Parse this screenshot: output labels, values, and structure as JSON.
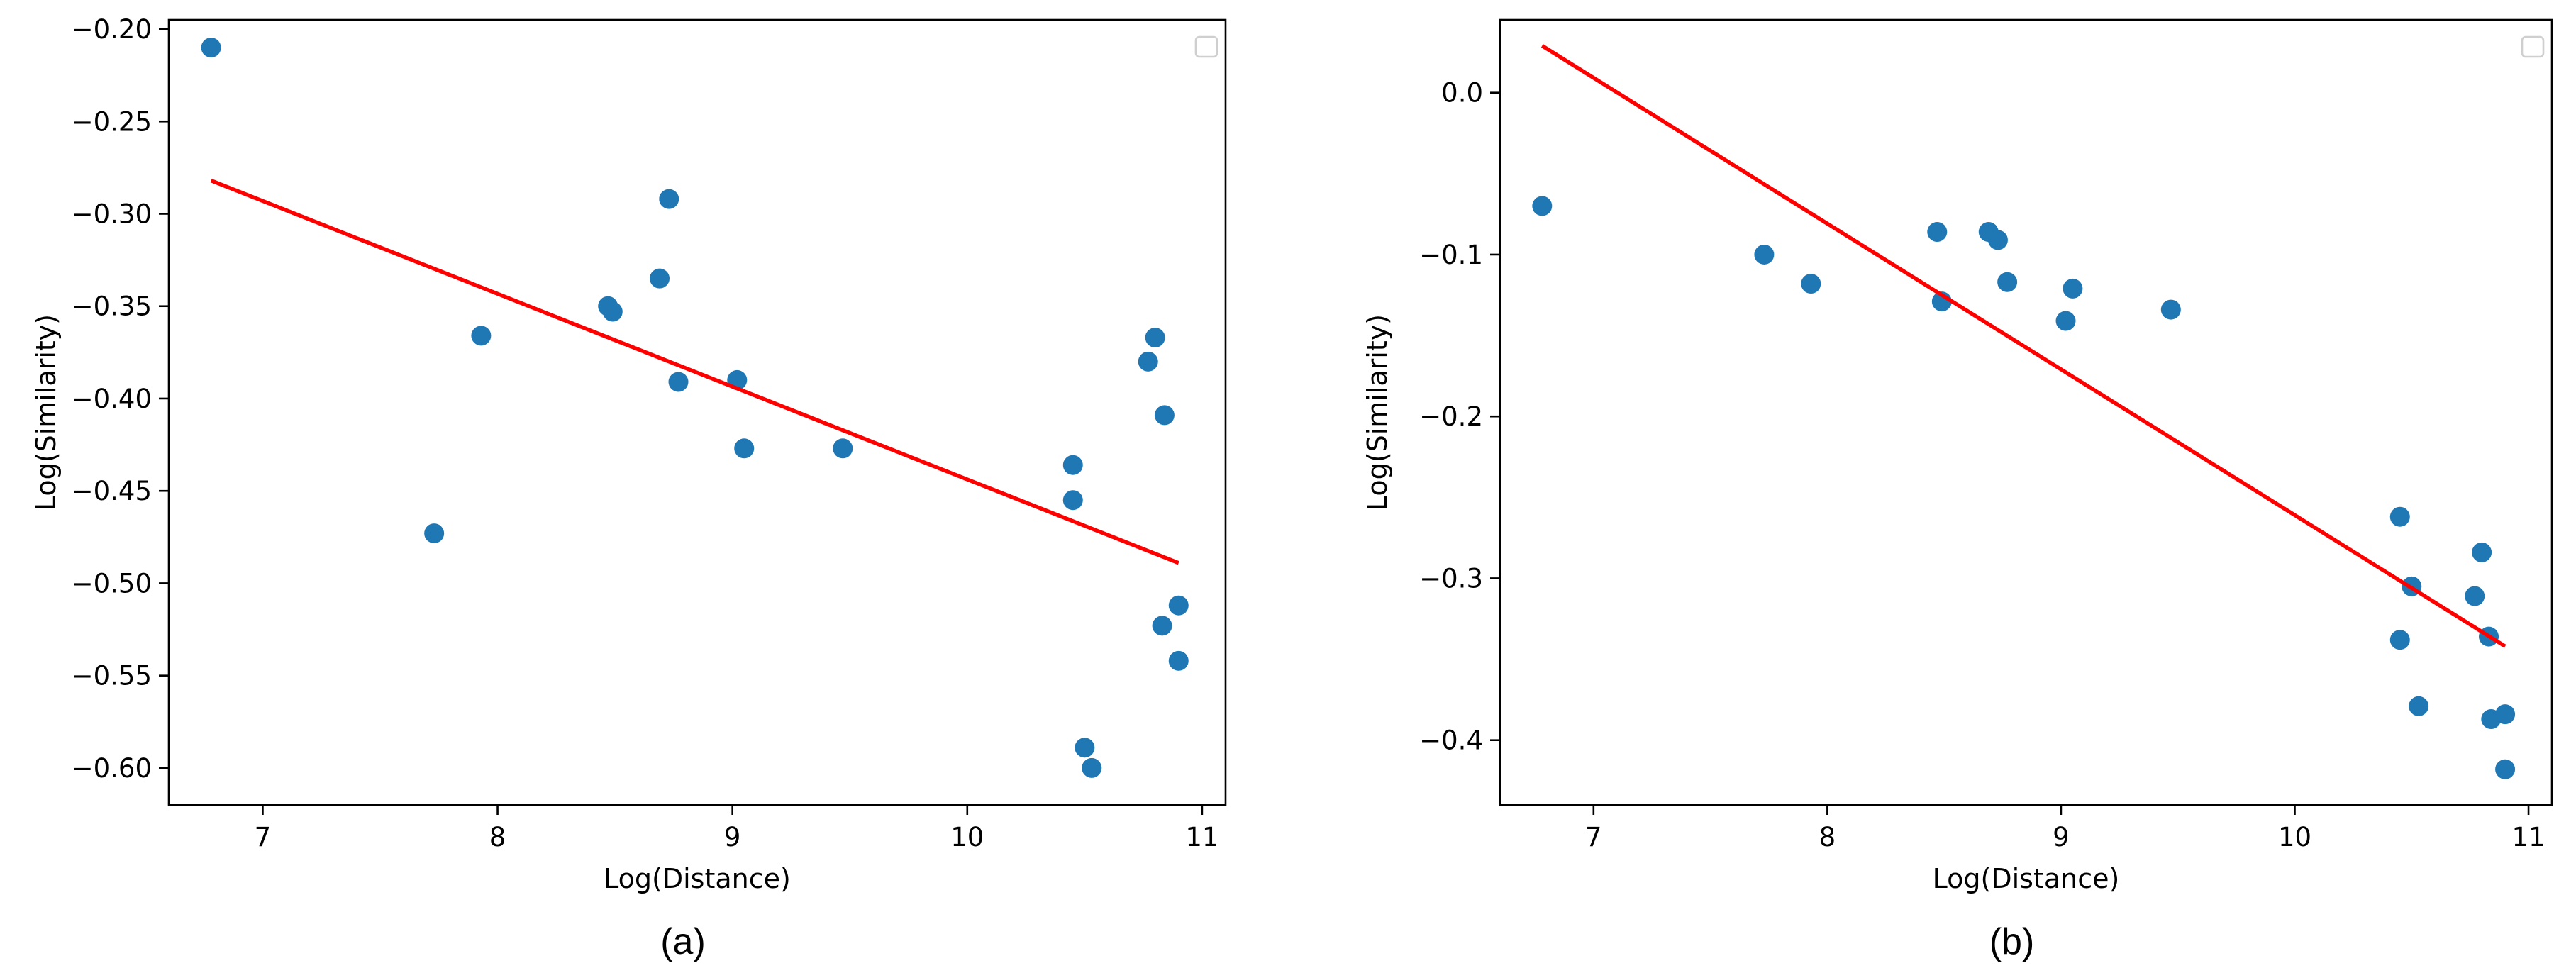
{
  "chart_data": [
    {
      "type": "scatter",
      "caption": "(a)",
      "xlabel": "Log(Distance)",
      "ylabel": "Log(Similarity)",
      "xlim": [
        6.6,
        11.1
      ],
      "ylim": [
        -0.62,
        -0.195
      ],
      "xticks": [
        7,
        8,
        9,
        10,
        11
      ],
      "yticks": [
        -0.6,
        -0.55,
        -0.5,
        -0.45,
        -0.4,
        -0.35,
        -0.3,
        -0.25,
        -0.2
      ],
      "xtick_labels": [
        "7",
        "8",
        "9",
        "10",
        "11"
      ],
      "ytick_labels": [
        "−0.60",
        "−0.55",
        "−0.50",
        "−0.45",
        "−0.40",
        "−0.35",
        "−0.30",
        "−0.25",
        "−0.20"
      ],
      "legend": "top-right (empty)",
      "grid": false,
      "point_color": "#1f77b4",
      "line_color": "#ff0000",
      "points": [
        [
          6.78,
          -0.21
        ],
        [
          7.73,
          -0.473
        ],
        [
          7.93,
          -0.366
        ],
        [
          8.47,
          -0.35
        ],
        [
          8.49,
          -0.353
        ],
        [
          8.69,
          -0.335
        ],
        [
          8.73,
          -0.292
        ],
        [
          8.77,
          -0.391
        ],
        [
          9.02,
          -0.39
        ],
        [
          9.05,
          -0.427
        ],
        [
          9.47,
          -0.427
        ],
        [
          10.45,
          -0.436
        ],
        [
          10.45,
          -0.455
        ],
        [
          10.5,
          -0.589
        ],
        [
          10.53,
          -0.6
        ],
        [
          10.77,
          -0.38
        ],
        [
          10.8,
          -0.367
        ],
        [
          10.83,
          -0.523
        ],
        [
          10.84,
          -0.409
        ],
        [
          10.9,
          -0.512
        ],
        [
          10.9,
          -0.542
        ]
      ],
      "fit_line": [
        [
          6.78,
          -0.282
        ],
        [
          10.9,
          -0.489
        ]
      ]
    },
    {
      "type": "scatter",
      "caption": "(b)",
      "xlabel": "Log(Distance)",
      "ylabel": "Log(Similarity)",
      "xlim": [
        6.6,
        11.1
      ],
      "ylim": [
        -0.44,
        0.045
      ],
      "xticks": [
        7,
        8,
        9,
        10,
        11
      ],
      "yticks": [
        -0.4,
        -0.3,
        -0.2,
        -0.1,
        0.0
      ],
      "xtick_labels": [
        "7",
        "8",
        "9",
        "10",
        "11"
      ],
      "ytick_labels": [
        "−0.4",
        "−0.3",
        "−0.2",
        "−0.1",
        "0.0"
      ],
      "legend": "top-right (empty)",
      "grid": false,
      "point_color": "#1f77b4",
      "line_color": "#ff0000",
      "points": [
        [
          6.78,
          -0.07
        ],
        [
          7.73,
          -0.1
        ],
        [
          7.93,
          -0.118
        ],
        [
          8.47,
          -0.086
        ],
        [
          8.49,
          -0.129
        ],
        [
          8.69,
          -0.086
        ],
        [
          8.73,
          -0.091
        ],
        [
          8.77,
          -0.117
        ],
        [
          9.02,
          -0.141
        ],
        [
          9.05,
          -0.121
        ],
        [
          9.47,
          -0.134
        ],
        [
          10.45,
          -0.262
        ],
        [
          10.45,
          -0.338
        ],
        [
          10.5,
          -0.305
        ],
        [
          10.53,
          -0.379
        ],
        [
          10.77,
          -0.311
        ],
        [
          10.8,
          -0.284
        ],
        [
          10.83,
          -0.336
        ],
        [
          10.84,
          -0.387
        ],
        [
          10.9,
          -0.384
        ],
        [
          10.9,
          -0.418
        ]
      ],
      "fit_line": [
        [
          6.78,
          0.029
        ],
        [
          10.9,
          -0.342
        ]
      ]
    }
  ]
}
